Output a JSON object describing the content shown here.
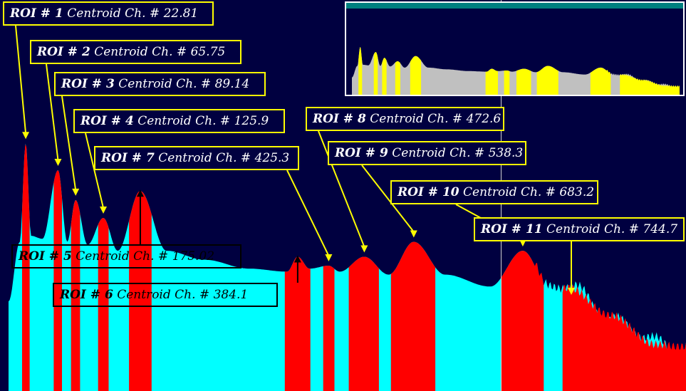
{
  "colors": {
    "background": "#000040",
    "roi_fill": "#ff0000",
    "spectrum_fill": "#00ffff",
    "label_border": "#ffff00",
    "label_text": "#ffffff",
    "arrow": "#ffff00",
    "inset_background": "#000040",
    "inset_spectrum": "#c0c0c0",
    "inset_roi": "#ffff00",
    "inset_title_bar": "#008080",
    "cursor_line": "#d0d0d0"
  },
  "chart_data": {
    "type": "area",
    "xlabel": "",
    "ylabel": "",
    "xlim": [
      0,
      900
    ],
    "ylim": [
      0,
      100
    ],
    "grid": false,
    "spectrum": {
      "x": [
        0,
        15,
        22.81,
        30,
        45,
        65.75,
        78,
        89.14,
        105,
        125.9,
        145,
        175.02,
        210,
        260,
        320,
        370,
        384.1,
        400,
        425.3,
        440,
        472.6,
        505,
        538.3,
        580,
        640,
        683.2,
        720,
        745,
        800,
        860,
        900
      ],
      "y": [
        30,
        50,
        83,
        52,
        51,
        74,
        50,
        64,
        49,
        58,
        47,
        67,
        47,
        44,
        41,
        40,
        45,
        41,
        42,
        40,
        45,
        39,
        50,
        39,
        35,
        47,
        34,
        36,
        24,
        17,
        14
      ]
    },
    "rois": [
      {
        "id": "ROI # 1",
        "prefix": "Centroid  Ch. #",
        "centroid": "22.81",
        "channel": 22.81,
        "range": [
          18,
          28
        ]
      },
      {
        "id": "ROI # 2",
        "prefix": "Centroid  Ch. #",
        "centroid": "65.75",
        "channel": 65.75,
        "range": [
          60,
          71
        ]
      },
      {
        "id": "ROI # 3",
        "prefix": "Centroid  Ch. #",
        "centroid": "89.14",
        "channel": 89.14,
        "range": [
          83,
          95
        ]
      },
      {
        "id": "ROI # 4",
        "prefix": "Centroid Ch. #",
        "centroid": "125.9",
        "channel": 125.9,
        "range": [
          119,
          133
        ]
      },
      {
        "id": "ROI # 5",
        "prefix": "Centroid  Ch. #",
        "centroid": "175.02",
        "channel": 175.02,
        "range": [
          160,
          190
        ]
      },
      {
        "id": "ROI # 6",
        "prefix": "Centroid  Ch. #",
        "centroid": "384.1",
        "channel": 384.1,
        "range": [
          367,
          401
        ]
      },
      {
        "id": "ROI # 7",
        "prefix": "Centroid Ch. #",
        "centroid": "425.3",
        "channel": 425.3,
        "range": [
          418,
          433
        ]
      },
      {
        "id": "ROI # 8",
        "prefix": "Centroid Ch. #",
        "centroid": "472.6",
        "channel": 472.6,
        "range": [
          452,
          492
        ]
      },
      {
        "id": "ROI # 9",
        "prefix": "Centroid Ch. #",
        "centroid": "538.3",
        "channel": 538.3,
        "range": [
          508,
          567
        ]
      },
      {
        "id": "ROI # 10",
        "prefix": "Centroid Ch. #",
        "centroid": "683.2",
        "channel": 683.2,
        "range": [
          655,
          711
        ]
      },
      {
        "id": "ROI # 11",
        "prefix": "Centroid Ch. #",
        "centroid": "744.7",
        "channel": 744.7,
        "range": [
          736,
          900
        ]
      }
    ]
  }
}
